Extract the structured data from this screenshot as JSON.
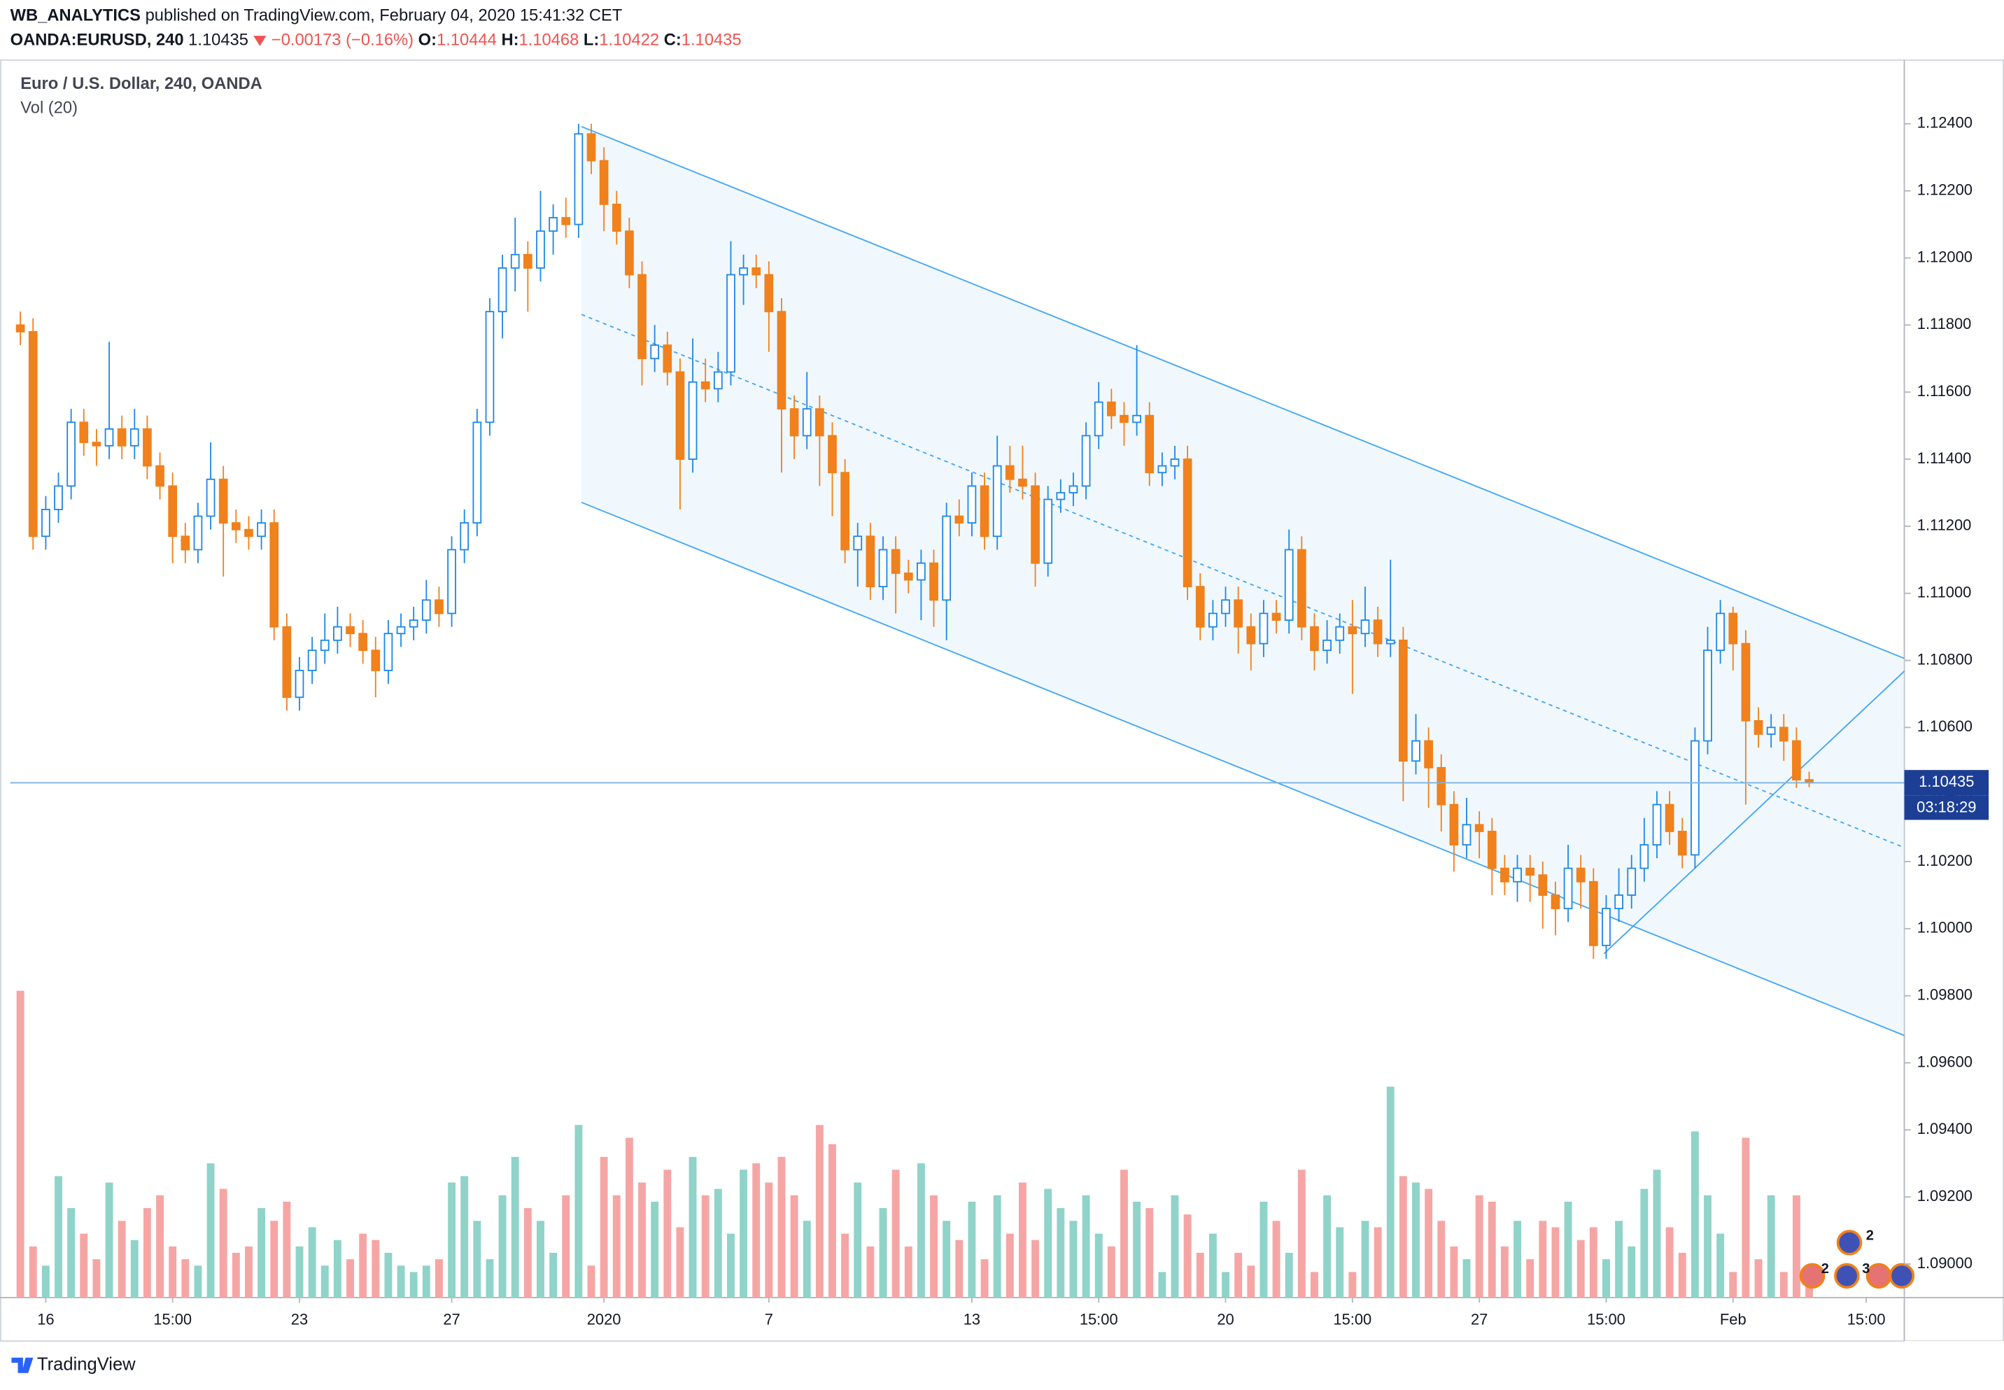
{
  "header": {
    "author": "WB_ANALYTICS",
    "published": "published on TradingView.com, February 04, 2020 15:41:32 CET",
    "symbol": "OANDA:EURUSD, 240",
    "change": "−0.00173 (−0.16%)",
    "open_label": "O:",
    "high_label": "H:",
    "low_label": "L:",
    "close_label": "C:"
  },
  "chart_data": {
    "type": "candlestick",
    "title": "Euro / U.S. Dollar, 240, OANDA",
    "volume_label": "Vol (20)",
    "countdown": "03:18:29",
    "up_color": "#1e88e5",
    "down_color": "#f0811c",
    "volume_up_color": "#8fd3c9",
    "volume_down_color": "#f6a5a5",
    "grid": false,
    "candles": [
      [
        1.118,
        1.1184,
        1.1174,
        1.1178
      ],
      [
        1.1178,
        1.1182,
        1.1113,
        1.1117
      ],
      [
        1.1117,
        1.1129,
        1.1113,
        1.1125
      ],
      [
        1.1125,
        1.1136,
        1.1121,
        1.1132
      ],
      [
        1.1132,
        1.1155,
        1.1128,
        1.1151
      ],
      [
        1.1151,
        1.1155,
        1.1141,
        1.1145
      ],
      [
        1.1145,
        1.1149,
        1.1138,
        1.1144
      ],
      [
        1.1144,
        1.1175,
        1.114,
        1.1149
      ],
      [
        1.1149,
        1.1153,
        1.114,
        1.1144
      ],
      [
        1.1144,
        1.1155,
        1.114,
        1.1149
      ],
      [
        1.1149,
        1.1153,
        1.1134,
        1.1138
      ],
      [
        1.1138,
        1.1142,
        1.1128,
        1.1132
      ],
      [
        1.1132,
        1.1136,
        1.1109,
        1.1117
      ],
      [
        1.1117,
        1.1121,
        1.1109,
        1.1113
      ],
      [
        1.1113,
        1.1127,
        1.1109,
        1.1123
      ],
      [
        1.1123,
        1.1145,
        1.1119,
        1.1134
      ],
      [
        1.1134,
        1.1138,
        1.1105,
        1.1121
      ],
      [
        1.1121,
        1.1125,
        1.1115,
        1.1119
      ],
      [
        1.1119,
        1.1123,
        1.1113,
        1.1117
      ],
      [
        1.1117,
        1.1125,
        1.1113,
        1.1121
      ],
      [
        1.1121,
        1.1125,
        1.1086,
        1.109
      ],
      [
        1.109,
        1.1094,
        1.1065,
        1.1069
      ],
      [
        1.1069,
        1.1081,
        1.1065,
        1.1077
      ],
      [
        1.1077,
        1.1087,
        1.1073,
        1.1083
      ],
      [
        1.1083,
        1.1094,
        1.1079,
        1.1086
      ],
      [
        1.1086,
        1.1096,
        1.1082,
        1.109
      ],
      [
        1.109,
        1.1094,
        1.1084,
        1.1088
      ],
      [
        1.1088,
        1.1092,
        1.1079,
        1.1083
      ],
      [
        1.1083,
        1.1087,
        1.1069,
        1.1077
      ],
      [
        1.1077,
        1.1092,
        1.1073,
        1.1088
      ],
      [
        1.1088,
        1.1094,
        1.1084,
        1.109
      ],
      [
        1.109,
        1.1096,
        1.1086,
        1.1092
      ],
      [
        1.1092,
        1.1104,
        1.1088,
        1.1098
      ],
      [
        1.1098,
        1.1102,
        1.109,
        1.1094
      ],
      [
        1.1094,
        1.1117,
        1.109,
        1.1113
      ],
      [
        1.1113,
        1.1125,
        1.1109,
        1.1121
      ],
      [
        1.1121,
        1.1155,
        1.1117,
        1.1151
      ],
      [
        1.1151,
        1.1188,
        1.1147,
        1.1184
      ],
      [
        1.1184,
        1.1201,
        1.1176,
        1.1197
      ],
      [
        1.1197,
        1.1212,
        1.119,
        1.1201
      ],
      [
        1.1201,
        1.1205,
        1.1184,
        1.1197
      ],
      [
        1.1197,
        1.122,
        1.1193,
        1.1208
      ],
      [
        1.1208,
        1.1216,
        1.1201,
        1.1212
      ],
      [
        1.1212,
        1.1218,
        1.1206,
        1.121
      ],
      [
        1.121,
        1.124,
        1.1206,
        1.1237
      ],
      [
        1.1237,
        1.124,
        1.1225,
        1.1229
      ],
      [
        1.1229,
        1.1233,
        1.1208,
        1.1216
      ],
      [
        1.1216,
        1.122,
        1.1204,
        1.1208
      ],
      [
        1.1208,
        1.1212,
        1.1191,
        1.1195
      ],
      [
        1.1195,
        1.1199,
        1.1162,
        1.117
      ],
      [
        1.117,
        1.118,
        1.1166,
        1.1174
      ],
      [
        1.1174,
        1.1178,
        1.1162,
        1.1166
      ],
      [
        1.1166,
        1.117,
        1.1125,
        1.114
      ],
      [
        1.114,
        1.1176,
        1.1136,
        1.1163
      ],
      [
        1.1163,
        1.117,
        1.1157,
        1.1161
      ],
      [
        1.1161,
        1.1172,
        1.1157,
        1.1166
      ],
      [
        1.1166,
        1.1205,
        1.1162,
        1.1195
      ],
      [
        1.1195,
        1.1201,
        1.1186,
        1.1197
      ],
      [
        1.1197,
        1.1201,
        1.1191,
        1.1195
      ],
      [
        1.1195,
        1.1199,
        1.1172,
        1.1184
      ],
      [
        1.1184,
        1.1188,
        1.1136,
        1.1155
      ],
      [
        1.1155,
        1.1159,
        1.114,
        1.1147
      ],
      [
        1.1147,
        1.1166,
        1.1143,
        1.1155
      ],
      [
        1.1155,
        1.1159,
        1.1132,
        1.1147
      ],
      [
        1.1147,
        1.1151,
        1.1123,
        1.1136
      ],
      [
        1.1136,
        1.114,
        1.1109,
        1.1113
      ],
      [
        1.1113,
        1.1121,
        1.1102,
        1.1117
      ],
      [
        1.1117,
        1.1121,
        1.1098,
        1.1102
      ],
      [
        1.1102,
        1.1117,
        1.1098,
        1.1113
      ],
      [
        1.1113,
        1.1117,
        1.1094,
        1.1106
      ],
      [
        1.1106,
        1.111,
        1.11,
        1.1104
      ],
      [
        1.1104,
        1.1113,
        1.1092,
        1.1109
      ],
      [
        1.1109,
        1.1113,
        1.109,
        1.1098
      ],
      [
        1.1098,
        1.1127,
        1.1086,
        1.1123
      ],
      [
        1.1123,
        1.1128,
        1.1117,
        1.1121
      ],
      [
        1.1121,
        1.1136,
        1.1117,
        1.1132
      ],
      [
        1.1132,
        1.1136,
        1.1113,
        1.1117
      ],
      [
        1.1117,
        1.1147,
        1.1113,
        1.1138
      ],
      [
        1.1138,
        1.1144,
        1.113,
        1.1134
      ],
      [
        1.1134,
        1.1144,
        1.1128,
        1.1132
      ],
      [
        1.1132,
        1.1136,
        1.1102,
        1.1109
      ],
      [
        1.1109,
        1.1132,
        1.1105,
        1.1128
      ],
      [
        1.1128,
        1.1134,
        1.1124,
        1.113
      ],
      [
        1.113,
        1.1136,
        1.1126,
        1.1132
      ],
      [
        1.1132,
        1.1151,
        1.1128,
        1.1147
      ],
      [
        1.1147,
        1.1163,
        1.1143,
        1.1157
      ],
      [
        1.1157,
        1.1161,
        1.1149,
        1.1153
      ],
      [
        1.1153,
        1.1157,
        1.1144,
        1.1151
      ],
      [
        1.1151,
        1.1174,
        1.1147,
        1.1153
      ],
      [
        1.1153,
        1.1157,
        1.1132,
        1.1136
      ],
      [
        1.1136,
        1.1142,
        1.1132,
        1.1138
      ],
      [
        1.1138,
        1.1144,
        1.1134,
        1.114
      ],
      [
        1.114,
        1.1144,
        1.1098,
        1.1102
      ],
      [
        1.1102,
        1.1106,
        1.1086,
        1.109
      ],
      [
        1.109,
        1.1098,
        1.1086,
        1.1094
      ],
      [
        1.1094,
        1.1102,
        1.109,
        1.1098
      ],
      [
        1.1098,
        1.1102,
        1.1082,
        1.109
      ],
      [
        1.109,
        1.1094,
        1.1077,
        1.1085
      ],
      [
        1.1085,
        1.1098,
        1.1081,
        1.1094
      ],
      [
        1.1094,
        1.1098,
        1.1088,
        1.1092
      ],
      [
        1.1092,
        1.1119,
        1.1088,
        1.1113
      ],
      [
        1.1113,
        1.1117,
        1.1086,
        1.109
      ],
      [
        1.109,
        1.1094,
        1.1077,
        1.1083
      ],
      [
        1.1083,
        1.1092,
        1.1079,
        1.1086
      ],
      [
        1.1086,
        1.1094,
        1.1082,
        1.109
      ],
      [
        1.109,
        1.1098,
        1.107,
        1.1088
      ],
      [
        1.1088,
        1.1102,
        1.1084,
        1.1092
      ],
      [
        1.1092,
        1.1096,
        1.1081,
        1.1085
      ],
      [
        1.1085,
        1.111,
        1.1081,
        1.1086
      ],
      [
        1.1086,
        1.109,
        1.1038,
        1.105
      ],
      [
        1.105,
        1.1064,
        1.1046,
        1.1056
      ],
      [
        1.1056,
        1.106,
        1.1036,
        1.1048
      ],
      [
        1.1048,
        1.1052,
        1.1029,
        1.1037
      ],
      [
        1.1037,
        1.1041,
        1.1017,
        1.1025
      ],
      [
        1.1025,
        1.1039,
        1.1021,
        1.1031
      ],
      [
        1.1031,
        1.1035,
        1.1021,
        1.1029
      ],
      [
        1.1029,
        1.1033,
        1.101,
        1.1018
      ],
      [
        1.1018,
        1.1022,
        1.101,
        1.1014
      ],
      [
        1.1014,
        1.1022,
        1.1008,
        1.1018
      ],
      [
        1.1018,
        1.1022,
        1.1008,
        1.1016
      ],
      [
        1.1016,
        1.102,
        1.1,
        1.101
      ],
      [
        1.101,
        1.1014,
        1.0998,
        1.1006
      ],
      [
        1.1006,
        1.1025,
        1.1002,
        1.1018
      ],
      [
        1.1018,
        1.1022,
        1.1006,
        1.1014
      ],
      [
        1.1014,
        1.1018,
        1.0991,
        1.0995
      ],
      [
        1.0995,
        1.101,
        1.0991,
        1.1006
      ],
      [
        1.1006,
        1.1018,
        1.1002,
        1.101
      ],
      [
        1.101,
        1.1022,
        1.1006,
        1.1018
      ],
      [
        1.1018,
        1.1033,
        1.1014,
        1.1025
      ],
      [
        1.1025,
        1.1041,
        1.1021,
        1.1037
      ],
      [
        1.1037,
        1.1041,
        1.1025,
        1.1029
      ],
      [
        1.1029,
        1.1033,
        1.1018,
        1.1022
      ],
      [
        1.1022,
        1.106,
        1.1018,
        1.1056
      ],
      [
        1.1056,
        1.109,
        1.1052,
        1.1083
      ],
      [
        1.1083,
        1.1098,
        1.1079,
        1.1094
      ],
      [
        1.1094,
        1.1096,
        1.1077,
        1.1085
      ],
      [
        1.1085,
        1.1089,
        1.1037,
        1.1062
      ],
      [
        1.1062,
        1.1066,
        1.1054,
        1.1058
      ],
      [
        1.1058,
        1.1064,
        1.1054,
        1.106
      ],
      [
        1.106,
        1.1064,
        1.105,
        1.1056
      ],
      [
        1.1056,
        1.106,
        1.1042,
        1.10444
      ],
      [
        1.10444,
        1.10468,
        1.10422,
        1.10435
      ]
    ],
    "volumes": [
      240,
      40,
      25,
      95,
      70,
      50,
      30,
      90,
      60,
      45,
      70,
      80,
      40,
      30,
      25,
      105,
      85,
      35,
      40,
      70,
      60,
      75,
      40,
      55,
      25,
      45,
      30,
      50,
      45,
      35,
      25,
      20,
      25,
      30,
      90,
      95,
      60,
      30,
      80,
      110,
      70,
      60,
      35,
      80,
      135,
      25,
      110,
      80,
      125,
      90,
      75,
      100,
      55,
      110,
      80,
      85,
      50,
      100,
      105,
      90,
      110,
      80,
      60,
      135,
      120,
      50,
      90,
      40,
      70,
      100,
      40,
      105,
      80,
      60,
      45,
      75,
      30,
      80,
      50,
      90,
      45,
      85,
      70,
      60,
      80,
      50,
      40,
      100,
      75,
      70,
      20,
      80,
      65,
      35,
      50,
      20,
      35,
      25,
      75,
      60,
      35,
      100,
      20,
      80,
      55,
      20,
      60,
      55,
      165,
      95,
      90,
      85,
      60,
      40,
      30,
      80,
      75,
      40,
      60,
      30,
      60,
      55,
      75,
      45,
      55,
      30,
      60,
      40,
      85,
      100,
      55,
      35,
      130,
      80,
      50,
      20,
      125,
      30,
      80,
      20,
      80,
      20
    ],
    "xlim": [
      -0.8,
      148.5
    ],
    "xticks": [
      {
        "value": 2,
        "label": "16"
      },
      {
        "value": 12,
        "label": "15:00"
      },
      {
        "value": 22,
        "label": "23"
      },
      {
        "value": 34,
        "label": "27"
      },
      {
        "value": 46,
        "label": "2020"
      },
      {
        "value": 59,
        "label": "7"
      },
      {
        "value": 75,
        "label": "13"
      },
      {
        "value": 85,
        "label": "15:00"
      },
      {
        "value": 95,
        "label": "20"
      },
      {
        "value": 105,
        "label": "15:00"
      },
      {
        "value": 115,
        "label": "27"
      },
      {
        "value": 125,
        "label": "15:00"
      },
      {
        "value": 135,
        "label": "Feb"
      },
      {
        "value": 145.5,
        "label": "15:00"
      }
    ],
    "ylim": [
      1.089,
      1.1259
    ],
    "yticks": [
      {
        "value": 1.124,
        "label": "1.12400"
      },
      {
        "value": 1.122,
        "label": "1.12200"
      },
      {
        "value": 1.12,
        "label": "1.12000"
      },
      {
        "value": 1.118,
        "label": "1.11800"
      },
      {
        "value": 1.116,
        "label": "1.11600"
      },
      {
        "value": 1.114,
        "label": "1.11400"
      },
      {
        "value": 1.112,
        "label": "1.11200"
      },
      {
        "value": 1.11,
        "label": "1.11000"
      },
      {
        "value": 1.108,
        "label": "1.10800"
      },
      {
        "value": 1.106,
        "label": "1.10600"
      },
      {
        "value": 1.104,
        "label": "1.10400"
      },
      {
        "value": 1.102,
        "label": "1.10200"
      },
      {
        "value": 1.1,
        "label": "1.10000"
      },
      {
        "value": 1.098,
        "label": "1.09800"
      },
      {
        "value": 1.096,
        "label": "1.09600"
      },
      {
        "value": 1.094,
        "label": "1.09400"
      },
      {
        "value": 1.092,
        "label": "1.09200"
      },
      {
        "value": 1.09,
        "label": "1.09000"
      }
    ]
  },
  "events": [
    "2",
    "2",
    "3"
  ],
  "footer": {
    "brand": "TradingView"
  }
}
